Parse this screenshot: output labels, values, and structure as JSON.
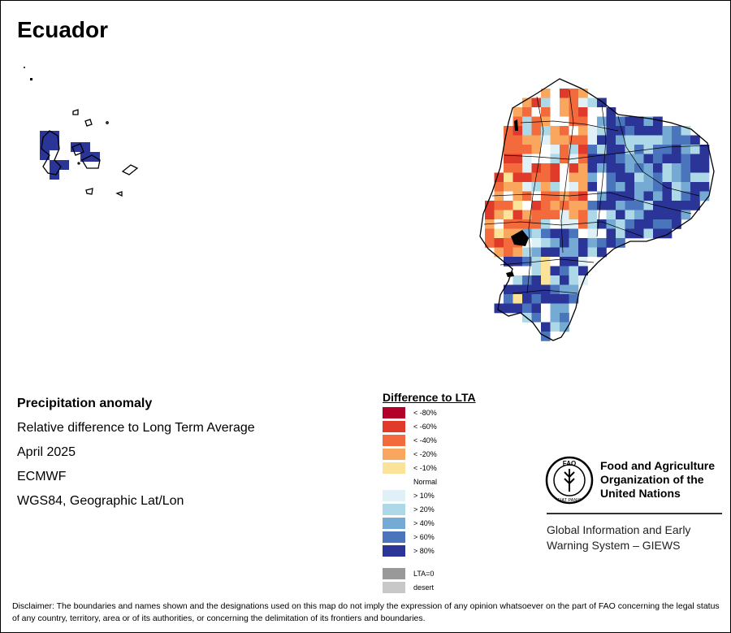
{
  "title": "Ecuador",
  "info": {
    "heading": "Precipitation anomaly",
    "subtitle": "Relative difference to Long Term Average",
    "period": "April 2025",
    "source": "ECMWF",
    "projection": "WGS84, Geographic Lat/Lon"
  },
  "legend": {
    "title": "Difference to LTA",
    "items": [
      {
        "label": "< -80%",
        "color": "#b2002a"
      },
      {
        "label": "< -60%",
        "color": "#df3a2a"
      },
      {
        "label": "< -40%",
        "color": "#f36b3c"
      },
      {
        "label": "< -20%",
        "color": "#f9a65f"
      },
      {
        "label": "< -10%",
        "color": "#fce39a"
      },
      {
        "label": "Normal",
        "color": "#ffffff"
      },
      {
        "label": "> 10%",
        "color": "#dff1f7"
      },
      {
        "label": "> 20%",
        "color": "#acd8e8"
      },
      {
        "label": "> 40%",
        "color": "#75aad4"
      },
      {
        "label": "> 60%",
        "color": "#4a75bd"
      },
      {
        "label": "> 80%",
        "color": "#2b3597"
      }
    ],
    "extra": [
      {
        "label": "LTA=0",
        "color": "#999999"
      },
      {
        "label": "desert",
        "color": "#c8c8c8"
      }
    ]
  },
  "fao": {
    "logo_text": "FAO",
    "logo_motto": "FIAT PANIS",
    "name": "Food and Agriculture Organization of the United Nations",
    "giews": "Global Information and Early Warning System – GIEWS"
  },
  "disclaimer": "Disclaimer: The boundaries and names shown and the designations used on this map do not imply the expression of any opinion whatsoever on the part of FAO concerning the legal status of any country, territory, area or of its authorities, or concerning the delimitation of its frontiers and boundaries.",
  "map": {
    "regions": [
      {
        "name": "mainland-ecuador",
        "legend_classes": [
          "< -60%",
          "< -40%",
          "< -20%",
          "< -10%",
          "Normal",
          "> 10%",
          "> 20%",
          "> 40%",
          "> 60%",
          "> 80%"
        ]
      },
      {
        "name": "galapagos-islands",
        "legend_classes": [
          "> 80%"
        ]
      }
    ]
  }
}
